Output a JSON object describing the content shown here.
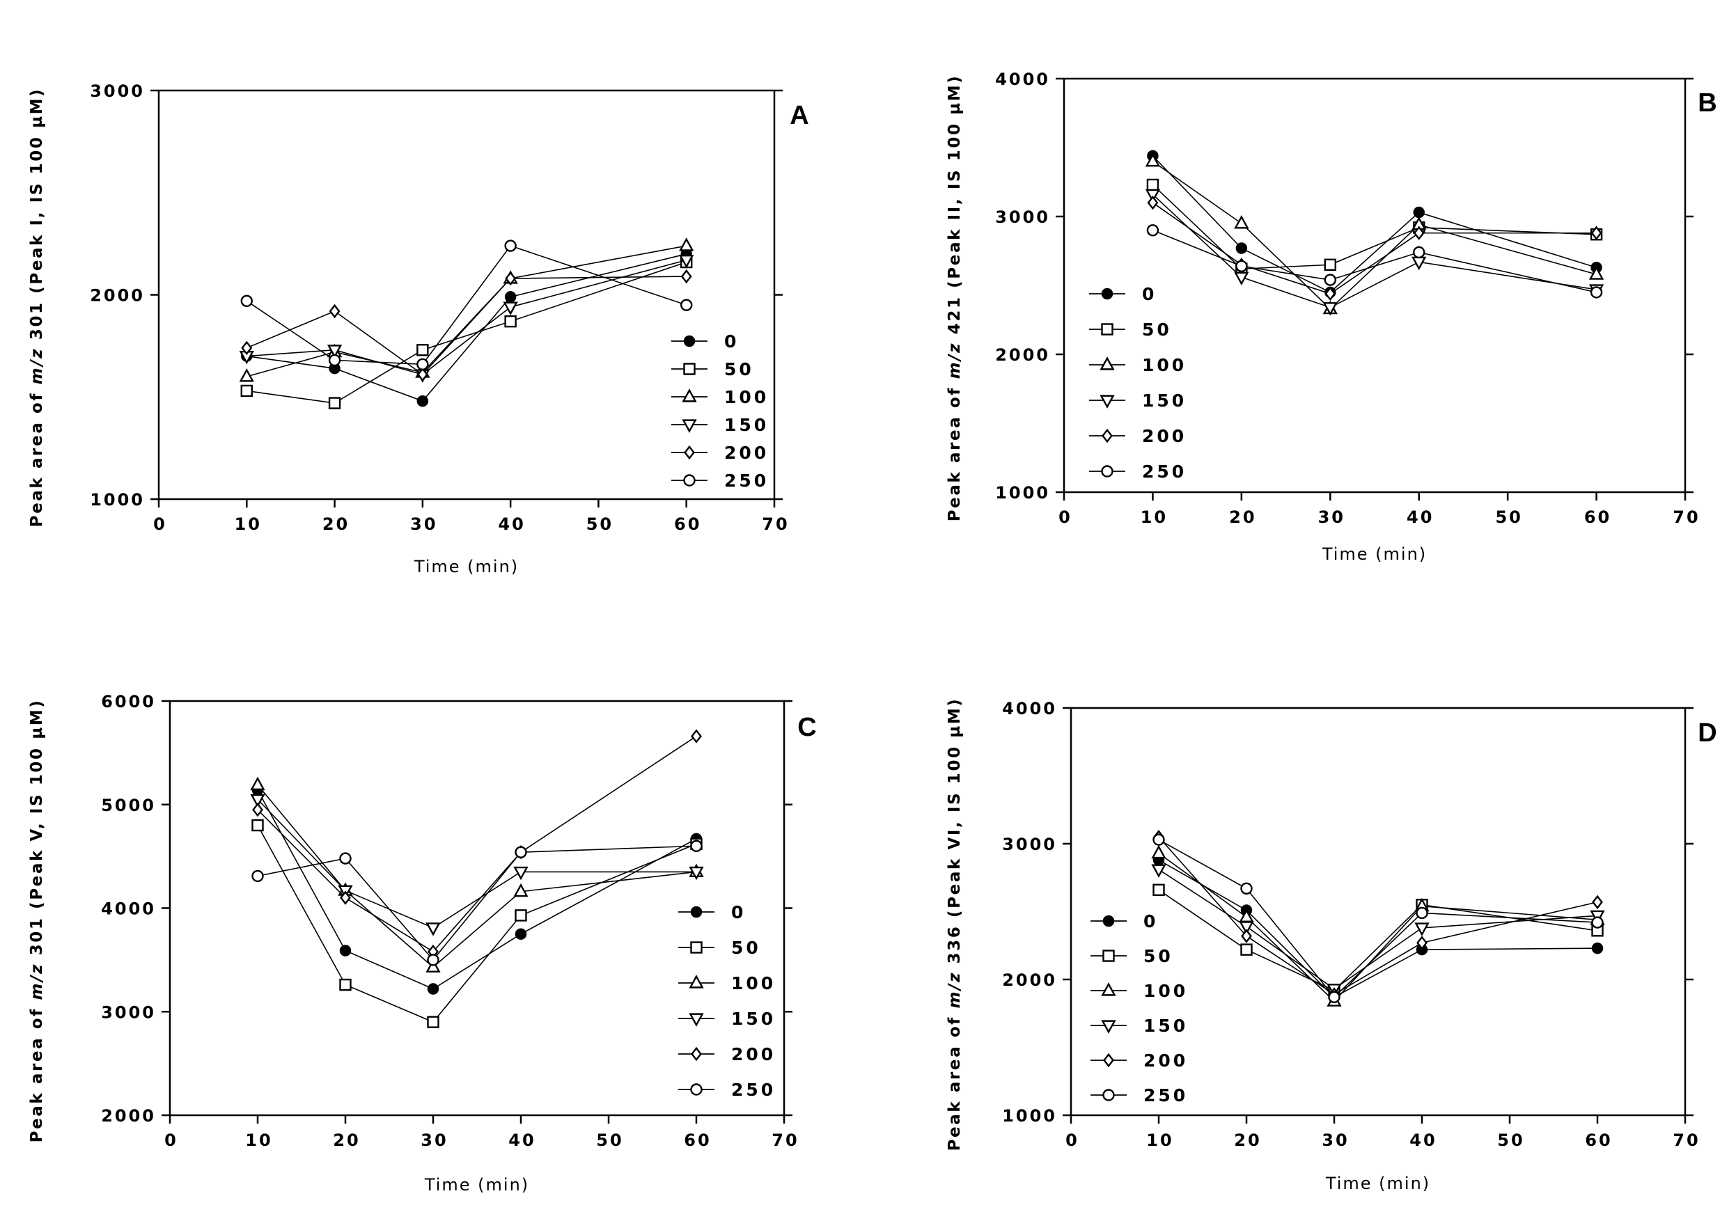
{
  "figure_label": "Peak area time courses for four peaks at six concentrations",
  "chart_data": [
    {
      "panel": "A",
      "type": "line",
      "title": "",
      "xlabel": "Time (min)",
      "ylabel_parts": [
        "Peak area of ",
        "m/z",
        " 301 (Peak I, IS 100 µM)"
      ],
      "xlim": [
        0,
        70
      ],
      "ylim": [
        1000,
        3000
      ],
      "xticks": [
        0,
        10,
        20,
        30,
        40,
        50,
        60,
        70
      ],
      "yticks": [
        1000,
        2000,
        3000
      ],
      "x": [
        10,
        20,
        30,
        40,
        60
      ],
      "legend_position": "bottom-right",
      "series": [
        {
          "name": "0",
          "marker": "filled-circle",
          "values": [
            1700,
            1640,
            1480,
            1990,
            2200
          ]
        },
        {
          "name": "50",
          "marker": "open-square",
          "values": [
            1530,
            1470,
            1730,
            1870,
            2160
          ]
        },
        {
          "name": "100",
          "marker": "open-triangle",
          "values": [
            1600,
            1720,
            1620,
            2080,
            2240
          ]
        },
        {
          "name": "150",
          "marker": "open-triangle-down",
          "values": [
            1700,
            1730,
            1610,
            1940,
            2170
          ]
        },
        {
          "name": "200",
          "marker": "open-diamond",
          "values": [
            1740,
            1920,
            1610,
            2080,
            2090
          ]
        },
        {
          "name": "250",
          "marker": "open-circle",
          "values": [
            1970,
            1680,
            1660,
            2240,
            1950
          ]
        }
      ]
    },
    {
      "panel": "B",
      "type": "line",
      "title": "",
      "xlabel": "Time (min)",
      "ylabel_parts": [
        "Peak area of ",
        "m/z",
        " 421 (Peak II, IS 100 µM)"
      ],
      "xlim": [
        0,
        70
      ],
      "ylim": [
        1000,
        4000
      ],
      "xticks": [
        0,
        10,
        20,
        30,
        40,
        50,
        60,
        70
      ],
      "yticks": [
        1000,
        2000,
        3000,
        4000
      ],
      "x": [
        10,
        20,
        30,
        40,
        60
      ],
      "legend_position": "left",
      "series": [
        {
          "name": "0",
          "marker": "filled-circle",
          "values": [
            3440,
            2770,
            2450,
            3030,
            2630
          ]
        },
        {
          "name": "50",
          "marker": "open-square",
          "values": [
            3230,
            2620,
            2650,
            2920,
            2870
          ]
        },
        {
          "name": "100",
          "marker": "open-triangle",
          "values": [
            3400,
            2950,
            2330,
            2940,
            2580
          ]
        },
        {
          "name": "150",
          "marker": "open-triangle-down",
          "values": [
            3160,
            2560,
            2340,
            2670,
            2470
          ]
        },
        {
          "name": "200",
          "marker": "open-diamond",
          "values": [
            3100,
            2650,
            2440,
            2880,
            2880
          ]
        },
        {
          "name": "250",
          "marker": "open-circle",
          "values": [
            2900,
            2640,
            2540,
            2740,
            2450
          ]
        }
      ]
    },
    {
      "panel": "C",
      "type": "line",
      "title": "",
      "xlabel": "Time (min)",
      "ylabel_parts": [
        "Peak area of ",
        "m/z",
        " 301 (Peak V, IS 100 µM)"
      ],
      "xlim": [
        0,
        70
      ],
      "ylim": [
        2000,
        6000
      ],
      "xticks": [
        0,
        10,
        20,
        30,
        40,
        50,
        60,
        70
      ],
      "yticks": [
        2000,
        3000,
        4000,
        5000,
        6000
      ],
      "x": [
        10,
        20,
        30,
        40,
        60
      ],
      "legend_position": "right",
      "series": [
        {
          "name": "0",
          "marker": "filled-circle",
          "values": [
            5140,
            3590,
            3220,
            3750,
            4670
          ]
        },
        {
          "name": "50",
          "marker": "open-square",
          "values": [
            4800,
            3260,
            2900,
            3930,
            4620
          ]
        },
        {
          "name": "100",
          "marker": "open-triangle",
          "values": [
            5190,
            4170,
            3430,
            4160,
            4350
          ]
        },
        {
          "name": "150",
          "marker": "open-triangle-down",
          "values": [
            5050,
            4170,
            3810,
            4350,
            4350
          ]
        },
        {
          "name": "200",
          "marker": "open-diamond",
          "values": [
            4950,
            4100,
            3580,
            4540,
            5660
          ]
        },
        {
          "name": "250",
          "marker": "open-circle",
          "values": [
            4310,
            4480,
            3500,
            4540,
            4600
          ]
        }
      ]
    },
    {
      "panel": "D",
      "type": "line",
      "title": "",
      "xlabel": "Time (min)",
      "ylabel_parts": [
        "Peak area of ",
        "m/z",
        " 336 (Peak VI, IS 100 µM)"
      ],
      "xlim": [
        0,
        70
      ],
      "ylim": [
        1000,
        4000
      ],
      "xticks": [
        0,
        10,
        20,
        30,
        40,
        50,
        60,
        70
      ],
      "yticks": [
        1000,
        2000,
        3000,
        4000
      ],
      "x": [
        10,
        20,
        30,
        40,
        60
      ],
      "legend_position": "left",
      "series": [
        {
          "name": "0",
          "marker": "filled-circle",
          "values": [
            2880,
            2510,
            1870,
            2220,
            2230
          ]
        },
        {
          "name": "50",
          "marker": "open-square",
          "values": [
            2660,
            2220,
            1920,
            2550,
            2360
          ]
        },
        {
          "name": "100",
          "marker": "open-triangle",
          "values": [
            2930,
            2460,
            1840,
            2540,
            2440
          ]
        },
        {
          "name": "150",
          "marker": "open-triangle-down",
          "values": [
            2810,
            2390,
            1930,
            2380,
            2470
          ]
        },
        {
          "name": "200",
          "marker": "open-diamond",
          "values": [
            3050,
            2320,
            1890,
            2270,
            2570
          ]
        },
        {
          "name": "250",
          "marker": "open-circle",
          "values": [
            3030,
            2670,
            1870,
            2490,
            2420
          ]
        }
      ]
    }
  ]
}
